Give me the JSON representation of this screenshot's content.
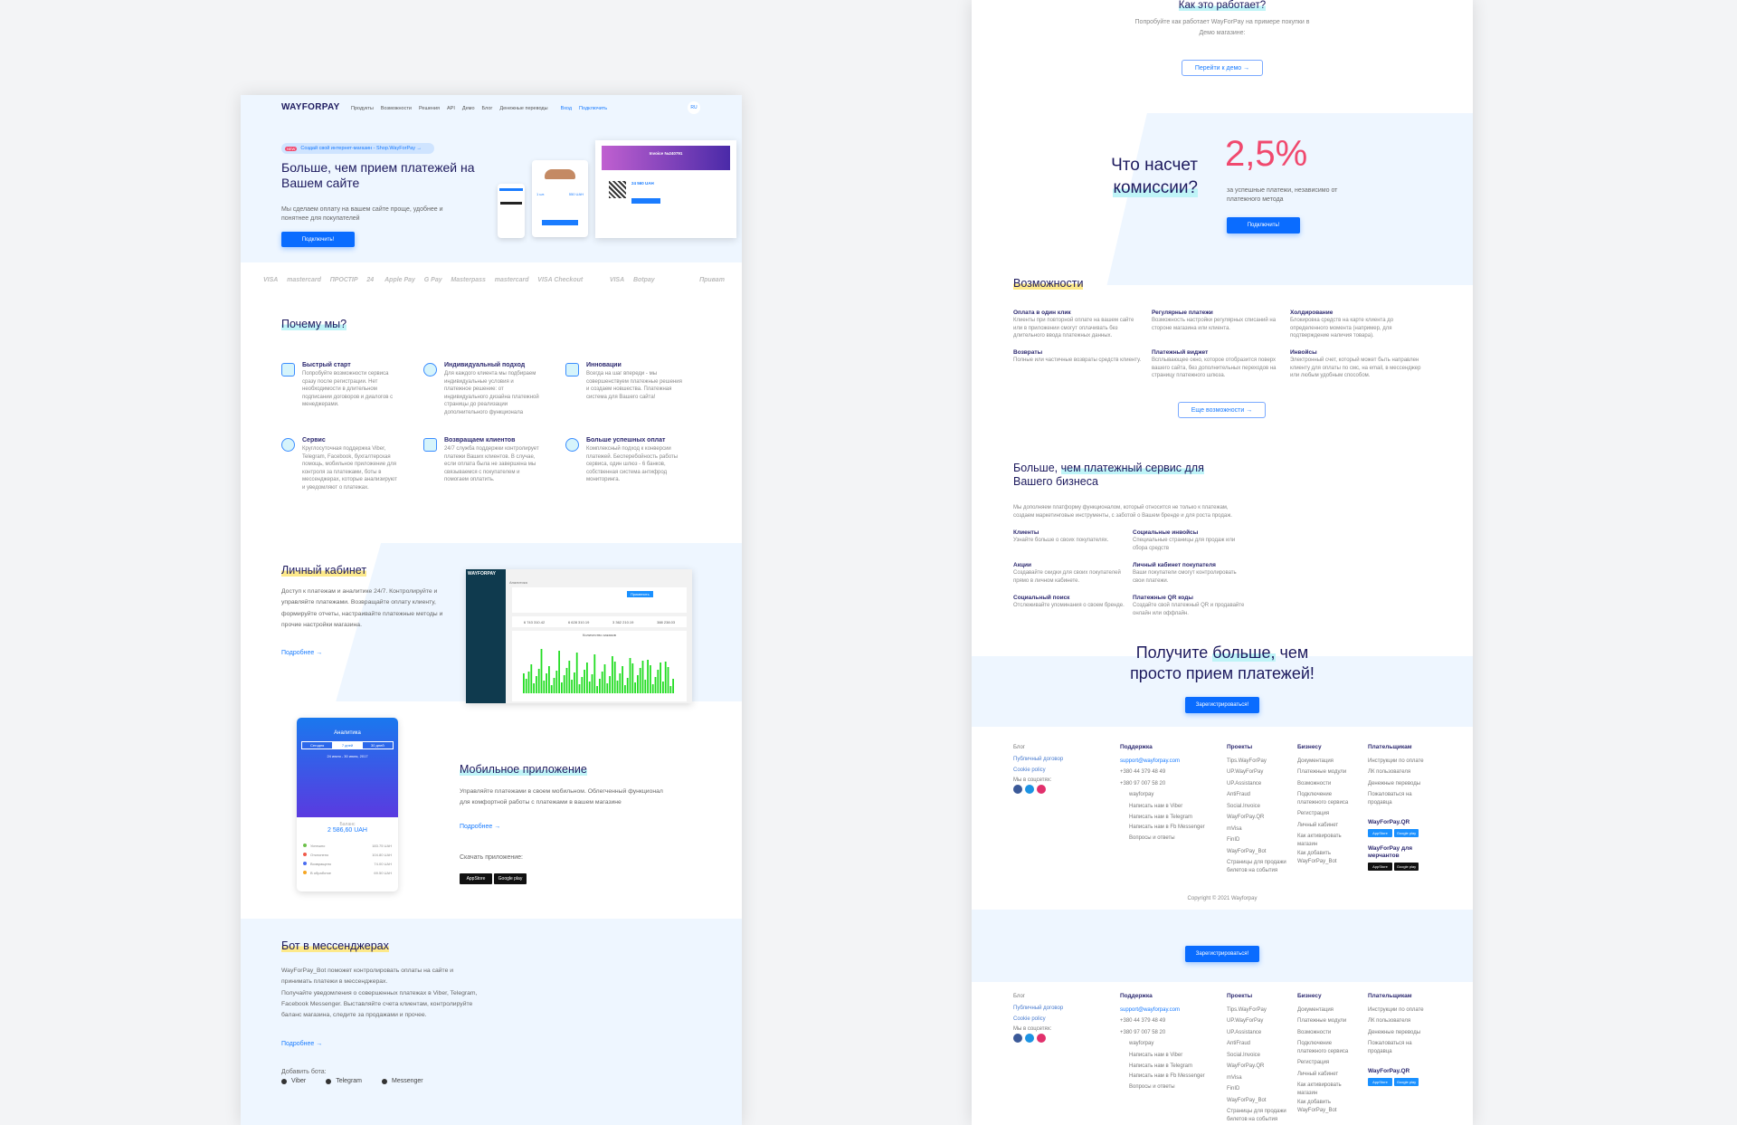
{
  "left": {
    "logo": "WAYFORPAY",
    "nav": [
      "Продукты",
      "Возможности",
      "Решения",
      "API",
      "Демо",
      "Блог",
      "Денежные переводы"
    ],
    "login": "Вход",
    "connect": "Подключить",
    "lang": "RU",
    "pill_badge": "NEW",
    "pill": "Создай свой интернет-магазин - Shop.WayForPay →",
    "hero_title": "Больше, чем прием платежей на Вашем сайте",
    "hero_sub": "Мы сделаем оплату на вашем сайте проще, удобнее и понятнее для покупателей",
    "hero_button": "Подключить!",
    "invoice_title": "Invoice №240791",
    "invoice_amount": "24 560 UAH",
    "tablet_qty": "1 шт.",
    "tablet_price": "550 UAH",
    "logos": [
      "VISA",
      "mastercard",
      "ПРОСТІР",
      "24",
      "Apple Pay",
      "G Pay",
      "Masterpass",
      "mastercard",
      "VISA Checkout",
      "",
      "VISA",
      "Botpay",
      "",
      "",
      "Приват"
    ],
    "why_title": "Почему мы?",
    "why": [
      {
        "icon": "rocket-user-icon",
        "title": "Быстрый старт",
        "text": "Попробуйте возможности сервиса сразу после регистрации. Нет необходимости в длительном подписании договоров и диалогов с менеджерами."
      },
      {
        "icon": "fingerprint-icon",
        "title": "Индивидуальный подход",
        "text": "Для каждого клиента мы подбираем индивидуальные условия и платежное решение: от индивидуального дизайна платежной страницы до реализации дополнительного функционала"
      },
      {
        "icon": "lightbulb-user-icon",
        "title": "Инновации",
        "text": "Всегда на шаг впереди - мы совершенствуем платежные решения и создаем новшества. Платежная система для Вашего сайта!"
      },
      {
        "icon": "service-devices-icon",
        "title": "Сервис",
        "text": "Круглосуточная поддержка Viber, Telegram, Facebook, бухгалтерская помощь, мобильное приложение для контроля за платежами, боты в мессенджерах, которые анализируют и уведомляют о платежах."
      },
      {
        "icon": "handshake-icon",
        "title": "Возвращаем клиентов",
        "text": "24/7 служба поддержки контролирует платежи Ваших клиентов. В случае, если оплата была не завершена мы связываемся с покупателем и помогаем оплатить."
      },
      {
        "icon": "target-icon",
        "title": "Больше успешных оплат",
        "text": "Комплексный подход к конверсии платежей. Бесперебойность работы сервиса, один шлюз - 6 банков, собственная система антифрод мониторинга."
      }
    ],
    "cabinet_title": "Личный кабинет",
    "cabinet_text": "Доступ к платежам и аналитике 24/7. Контролируйте и управляйте платежами. Возвращайте оплату клиенту, формируйте отчеты, настраивайте платежные методы и прочие настройки магазина.",
    "more": "Подробнее →",
    "dash_title": "Аналитика",
    "dash_apply": "Применить",
    "dash_stats": [
      "6 743 310.42",
      "6 628 310.19",
      "3 362 210.19",
      "388 238.03"
    ],
    "dash_chart_title": "Количество заказов",
    "phone_title": "Аналитика",
    "phone_tabs": [
      "Сегодня",
      "7 дней",
      "30 дней"
    ],
    "phone_range": "24 июля - 30 июля, 2017",
    "phone_balance_label": "Баланс",
    "phone_balance": "2 586,60 UAH",
    "phone_rows": [
      {
        "label": "Успешно",
        "value": "183.75 UAH",
        "color": "#6cc04a"
      },
      {
        "label": "Отклонено",
        "value": "104.80 UAH",
        "color": "#f05a4a"
      },
      {
        "label": "Возвращено",
        "value": "74.00 UAH",
        "color": "#4a6cf0"
      },
      {
        "label": "В обработке",
        "value": "69.50 UAH",
        "color": "#f5a623"
      }
    ],
    "mobile_title": "Мобильное приложение",
    "mobile_text": "Управляйте платежами в своем мобильном. Облегченный функционал для комфортной работы с платежами в вашем магазине",
    "download": "Скачать приложение:",
    "appstore": "AppStore",
    "googleplay": "Google play",
    "bot_title": "Бот в мессенджерах",
    "bot_text1": "WayForPay_Bot поможет контролировать оплаты на сайте и принимать платежи в мессенджерах.",
    "bot_text2": "Получайте уведомления о совершенных платежах в Viber, Telegram, Facebook Messenger. Выставляйте счета клиентам, контролируйте баланс магазина, следите за продажами и прочее.",
    "add_bot": "Добавить бота:",
    "bots": [
      "Viber",
      "Telegram",
      "Messenger"
    ]
  },
  "right": {
    "how_title": "Как это работает?",
    "how_sub": "Попробуйте как работает WayForPay на примере покупки в Демо магазине:",
    "demo_button": "Перейти к демо →",
    "fee_title1": "Что насчет",
    "fee_title2": "комиссии?",
    "fee_value": "2,5%",
    "fee_text": "за успешные платежи, независимо от платежного метода",
    "fee_button": "Подключить!",
    "features_title": "Возможности",
    "features": [
      {
        "title": "Оплата в один клик",
        "text": "Клиенты при повторной оплате на вашем сайте или в приложении смогут оплачивать без длительного ввода платежных данных."
      },
      {
        "title": "Регулярные платежи",
        "text": "Возможность настройки регулярных списаний на стороне магазина или клиента."
      },
      {
        "title": "Холдирование",
        "text": "Блокировка средств на карте клиента до определенного момента (например, для подтверждение наличия товара)."
      },
      {
        "title": "Возвраты",
        "text": "Полные или частичные возвраты средств клиенту."
      },
      {
        "title": "Платежный виджет",
        "text": "Всплывающее окно, которое отобразится поверх вашего сайта, без дополнительных переходов на страницу платежного шлюза."
      },
      {
        "title": "Инвойсы",
        "text": "Электронный счет, который может быть направлен клиенту для оплаты по смс, на email, в мессенджер или любым удобным способом."
      }
    ],
    "more_features": "Еще возможности →",
    "biz_title1": "Больше, ",
    "biz_title_hl": "чем платежный сервис для",
    "biz_title2": "Вашего бизнеса",
    "biz_text": "Мы дополняем платформу функционалом, который относится не только к платежам, создаем маркетинговые инструменты, с заботой о Вашем бренде и для роста продаж.",
    "biz": [
      {
        "title": "Клиенты",
        "text": "Узнайте больше о своих покупателях."
      },
      {
        "title": "Социальные инвойсы",
        "text": "Специальные страницы для продаж или сбора средств"
      },
      {
        "title": "Акции",
        "text": "Создавайте скидки для своих покупателей прямо в личном кабинете."
      },
      {
        "title": "Личный кабинет покупателя",
        "text": "Ваши покупатели смогут контролировать свои платежи."
      },
      {
        "title": "Социальный поиск",
        "text": "Отслеживайте упоминания о своем бренде."
      },
      {
        "title": "Платежные QR коды",
        "text": "Создайте свой платежный QR и продавайте онлайн или оффлайн."
      }
    ],
    "cta_title1": "Получите ",
    "cta_hl": "больше,",
    "cta_title2": " чем",
    "cta_title3": "просто прием платежей!",
    "cta_button": "Зарегистрироваться!",
    "footer": {
      "misc": [
        "Блог",
        "Публичный договор",
        "Cookie policy"
      ],
      "social_label": "Мы в соцсетях:",
      "support_title": "Поддержка",
      "support": [
        "support@wayforpay.com",
        "+380 44 379 48 49",
        "+380 97 007 58 20",
        "wayforpay",
        "Написать нам в Viber",
        "Написать нам в Telegram",
        "Написать нам в Fb Messenger",
        "Вопросы и ответы"
      ],
      "projects_title": "Проекты",
      "projects": [
        "Tips.WayForPay",
        "UP.WayForPay",
        "UP.Assistance",
        "AntiFraud",
        "Social.Invoice",
        "WayForPay.QR",
        "mVisa",
        "FinID",
        "WayForPay_Bot",
        "Страницы для продажи билетов на события"
      ],
      "business_title": "Бизнесу",
      "business": [
        "Документация",
        "Платежные модули",
        "Возможности",
        "Подключение платежного сервиса",
        "Регистрация",
        "Личный кабинет",
        "Как активировать магазин",
        "Как добавить WayForPay_Bot"
      ],
      "payers_title": "Плательщикам",
      "payers": [
        "Инструкции по оплате",
        "ЛК пользователя",
        "Денежные переводы",
        "Пожаловаться на продавца"
      ],
      "qr_app": "WayForPay.QR",
      "merchant_app": "WayForPay для мерчантов",
      "appstore": "AppStore",
      "googleplay": "Google play",
      "copyright": "Copyright © 2021 Wayforpay"
    }
  },
  "colors": {
    "accent": "#0a6cff",
    "navy": "#1d1a5e",
    "fee": "#f0496e",
    "light_bg": "#eef6ff"
  }
}
